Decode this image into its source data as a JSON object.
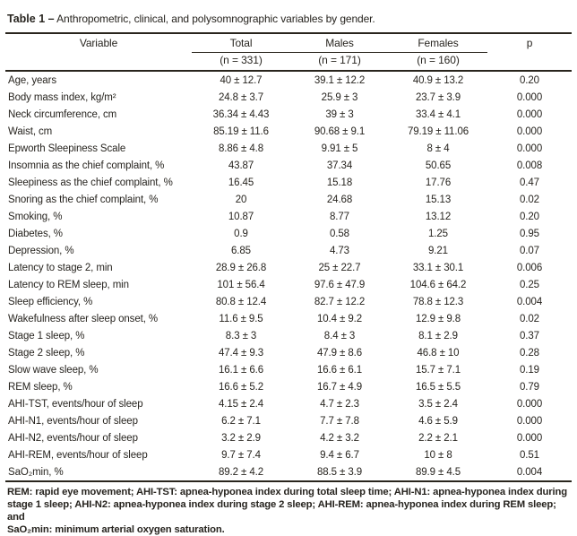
{
  "title": {
    "bold": "Table 1 –",
    "rest": "Anthropometric, clinical, and polysomnographic variables by gender."
  },
  "table": {
    "headers": {
      "variable": "Variable",
      "total": "Total",
      "males": "Males",
      "females": "Females",
      "p": "p"
    },
    "subheaders": {
      "total": "(n = 331)",
      "males": "(n = 171)",
      "females": "(n = 160)"
    },
    "rows": [
      [
        "Age, years",
        "40 ± 12.7",
        "39.1 ± 12.2",
        "40.9 ± 13.2",
        "0.20"
      ],
      [
        "Body mass index, kg/m²",
        "24.8 ± 3.7",
        "25.9 ± 3",
        "23.7 ± 3.9",
        "0.000"
      ],
      [
        "Neck circumference, cm",
        "36.34 ± 4.43",
        "39 ± 3",
        "33.4 ± 4.1",
        "0.000"
      ],
      [
        "Waist, cm",
        "85.19 ± 11.6",
        "90.68 ± 9.1",
        "79.19 ± 11.06",
        "0.000"
      ],
      [
        "Epworth Sleepiness Scale",
        "8.86 ± 4.8",
        "9.91 ± 5",
        "8 ± 4",
        "0.000"
      ],
      [
        "Insomnia as the chief complaint, %",
        "43.87",
        "37.34",
        "50.65",
        "0.008"
      ],
      [
        "Sleepiness as the chief complaint, %",
        "16.45",
        "15.18",
        "17.76",
        "0.47"
      ],
      [
        "Snoring as the chief complaint, %",
        "20",
        "24.68",
        "15.13",
        "0.02"
      ],
      [
        "Smoking, %",
        "10.87",
        "8.77",
        "13.12",
        "0.20"
      ],
      [
        "Diabetes, %",
        "0.9",
        "0.58",
        "1.25",
        "0.95"
      ],
      [
        "Depression, %",
        "6.85",
        "4.73",
        "9.21",
        "0.07"
      ],
      [
        "Latency to stage 2, min",
        "28.9 ± 26.8",
        "25 ± 22.7",
        "33.1 ± 30.1",
        "0.006"
      ],
      [
        "Latency to REM sleep, min",
        "101 ± 56.4",
        "97.6 ± 47.9",
        "104.6 ± 64.2",
        "0.25"
      ],
      [
        "Sleep efficiency, %",
        "80.8 ± 12.4",
        "82.7 ± 12.2",
        "78.8 ± 12.3",
        "0.004"
      ],
      [
        "Wakefulness after sleep onset, %",
        "11.6 ± 9.5",
        "10.4 ± 9.2",
        "12.9 ± 9.8",
        "0.02"
      ],
      [
        "Stage 1 sleep, %",
        "8.3 ± 3",
        "8.4 ± 3",
        "8.1 ± 2.9",
        "0.37"
      ],
      [
        "Stage 2 sleep, %",
        "47.4 ± 9.3",
        "47.9 ± 8.6",
        "46.8 ± 10",
        "0.28"
      ],
      [
        "Slow wave sleep, %",
        "16.1 ± 6.6",
        "16.6 ± 6.1",
        "15.7 ± 7.1",
        "0.19"
      ],
      [
        "REM sleep, %",
        "16.6 ± 5.2",
        "16.7 ± 4.9",
        "16.5 ± 5.5",
        "0.79"
      ],
      [
        "AHI-TST, events/hour of sleep",
        "4.15 ± 2.4",
        "4.7 ± 2.3",
        "3.5 ± 2.4",
        "0.000"
      ],
      [
        "AHI-N1, events/hour of sleep",
        "6.2 ± 7.1",
        "7.7 ± 7.8",
        "4.6 ± 5.9",
        "0.000"
      ],
      [
        "AHI-N2, events/hour of sleep",
        "3.2 ± 2.9",
        "4.2 ± 3.2",
        "2.2 ± 2.1",
        "0.000"
      ],
      [
        "AHI-REM, events/hour of sleep",
        "9.7 ± 7.4",
        "9.4 ± 6.7",
        "10 ± 8",
        "0.51"
      ],
      [
        "SaO₂min, %",
        "89.2 ± 4.2",
        "88.5 ± 3.9",
        "89.9 ± 4.5",
        "0.004"
      ]
    ]
  },
  "footnote": {
    "lines": [
      "REM: rapid eye movement; AHI-TST: apnea-hyponea index during total sleep time; AHI-N1: apnea-hyponea index during",
      "stage 1 sleep; AHI-N2: apnea-hyponea index during stage 2 sleep; AHI-REM: apnea-hyponea index during REM sleep; and",
      "SaO₂min: minimum arterial oxygen saturation."
    ]
  }
}
